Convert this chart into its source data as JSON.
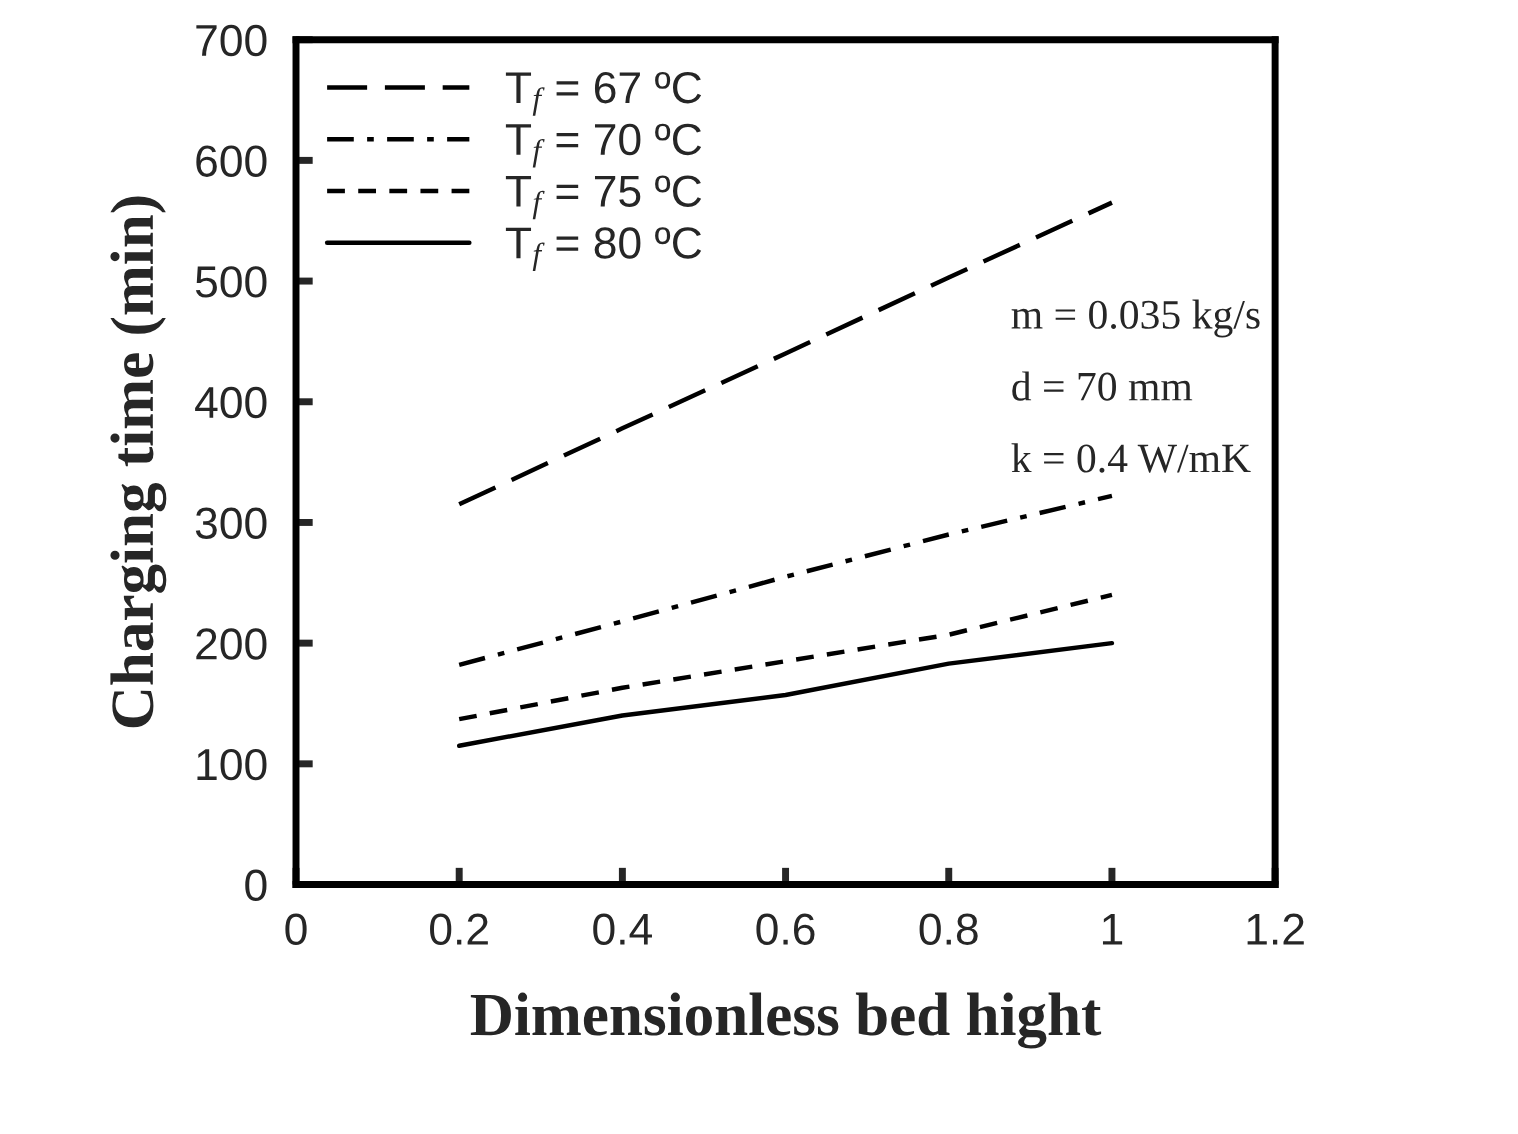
{
  "chart_data": {
    "type": "line",
    "xlabel": "Dimensionless bed hight",
    "ylabel": "Charging time (min)",
    "x": [
      0.2,
      0.4,
      0.6,
      0.8,
      1.0
    ],
    "series": [
      {
        "name": "T$_{f}$ = 67 ºC",
        "color": "#000000",
        "line_style": "long dashed",
        "values": [
          315,
          378,
          440,
          503,
          565
        ]
      },
      {
        "name": "T$_{f}$ = 70 ºC",
        "color": "#000000",
        "line_style": "dashdot",
        "values": [
          182,
          218,
          255,
          290,
          322
        ]
      },
      {
        "name": "T$_{f}$ = 75 ºC",
        "color": "#000000",
        "line_style": "dashed",
        "values": [
          137,
          163,
          185,
          207,
          240
        ]
      },
      {
        "name": "T$_{f}$ = 80 ºC",
        "color": "#000000",
        "line_style": "solid",
        "values": [
          115,
          140,
          157,
          183,
          200
        ]
      }
    ],
    "annotations": [
      "m = 0.035 kg/s",
      "d = 70 mm",
      "k = 0.4 W/mK"
    ],
    "xlim": [
      0,
      1.2
    ],
    "xticks": [
      0,
      0.2,
      0.4,
      0.6,
      0.8,
      1,
      1.2
    ],
    "ylim": [
      0,
      700
    ],
    "yticks": [
      0,
      100,
      200,
      300,
      400,
      500,
      600,
      700
    ],
    "grid": false,
    "legend": "top left",
    "marker": "none"
  }
}
